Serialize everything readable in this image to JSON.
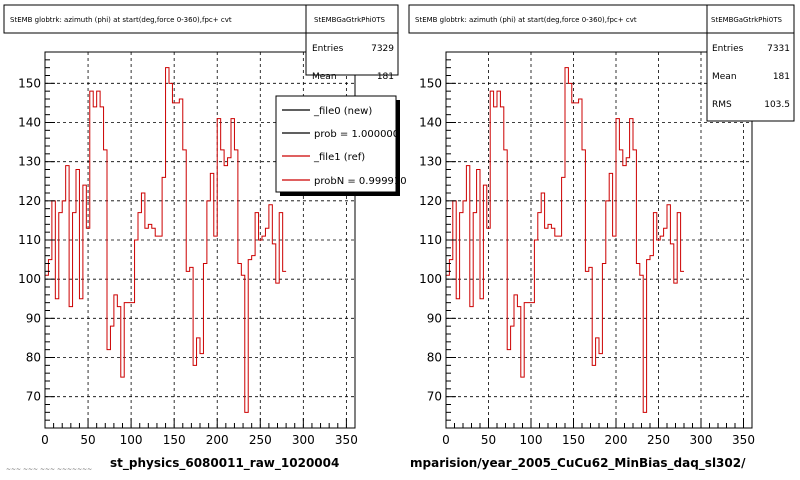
{
  "colors": {
    "hist_line": "#cc0000",
    "ref_line": "#000000",
    "grid": "#000000",
    "background": "#ffffff"
  },
  "chart_data": [
    {
      "type": "line",
      "title": "StEMB globtrk: azimuth (phi) at start(deg,force 0-360),fpc+ cvt",
      "stats": {
        "name": "StEMBGaGtrkPhi0TS",
        "entries_label": "Entries",
        "entries": "7329",
        "mean_label": "Mean",
        "mean": "181"
      },
      "xlim": [
        0,
        360
      ],
      "ylim": [
        62,
        158
      ],
      "xticks": [
        0,
        50,
        100,
        150,
        200,
        250,
        300,
        350
      ],
      "yticks": [
        70,
        80,
        90,
        100,
        110,
        120,
        130,
        140,
        150
      ],
      "grid": true,
      "legend_position": "top-right",
      "legend": [
        {
          "label": "_file0 (new)",
          "color": "#000000"
        },
        {
          "label": "prob = 1.000000",
          "color": "#000000"
        },
        {
          "label": "_file1 (ref)",
          "color": "#cc0000"
        },
        {
          "label": "probN = 0.999910",
          "color": "#cc0000"
        }
      ],
      "bin_width": 4,
      "values": [
        101,
        105,
        120,
        95,
        117,
        120,
        129,
        93,
        117,
        128,
        95,
        124,
        113,
        148,
        144,
        148,
        144,
        133,
        82,
        88,
        96,
        93,
        75,
        94,
        94,
        94,
        110,
        117,
        122,
        113,
        114,
        113,
        111,
        111,
        126,
        154,
        150,
        145,
        145,
        146,
        133,
        102,
        103,
        78,
        85,
        81,
        104,
        120,
        127,
        111,
        141,
        133,
        129,
        131,
        141,
        133,
        104,
        101,
        66,
        105,
        106,
        117,
        110,
        111,
        113,
        119,
        109,
        99,
        117,
        102
      ],
      "xlabel": "st_physics_6080011_raw_1020004"
    },
    {
      "type": "line",
      "title": "StEMB globtrk: azimuth (phi) at start(deg,force 0-360),fpc+ cvt",
      "stats": {
        "name": "StEMBGaGtrkPhi0TS",
        "entries_label": "Entries",
        "entries": "7331",
        "mean_label": "Mean",
        "mean": "181",
        "rms_label": "RMS",
        "rms": "103.5"
      },
      "xlim": [
        0,
        360
      ],
      "ylim": [
        62,
        158
      ],
      "xticks": [
        0,
        50,
        100,
        150,
        200,
        250,
        300,
        350
      ],
      "yticks": [
        70,
        80,
        90,
        100,
        110,
        120,
        130,
        140,
        150
      ],
      "grid": true,
      "bin_width": 4,
      "values": [
        101,
        105,
        120,
        95,
        117,
        120,
        129,
        93,
        117,
        128,
        95,
        124,
        113,
        148,
        144,
        148,
        144,
        133,
        82,
        88,
        96,
        93,
        75,
        94,
        94,
        94,
        110,
        117,
        122,
        113,
        114,
        113,
        111,
        111,
        126,
        154,
        150,
        145,
        145,
        146,
        133,
        102,
        103,
        78,
        85,
        81,
        104,
        120,
        127,
        111,
        141,
        133,
        129,
        131,
        141,
        133,
        104,
        101,
        66,
        105,
        106,
        117,
        110,
        111,
        113,
        119,
        109,
        99,
        117,
        102
      ],
      "xlabel": "mparision/year_2005_CuCu62_MinBias_daq_sl302/"
    }
  ],
  "footnote": "~~~ ~~~ ~~~ ~~~~~~~"
}
